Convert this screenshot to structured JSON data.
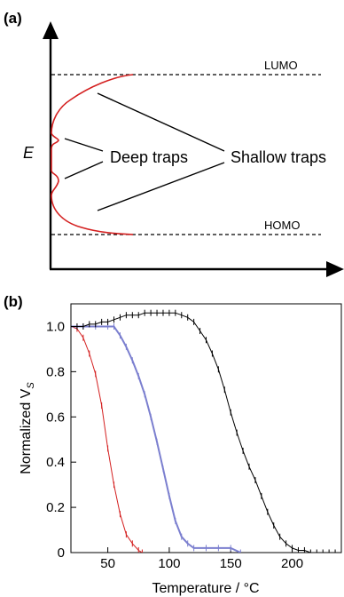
{
  "panel_a": {
    "label": "(a)",
    "y_axis_label": "E",
    "lumo_label": "LUMO",
    "homo_label": "HOMO",
    "deep_traps_label": "Deep traps",
    "shallow_traps_label": "Shallow traps",
    "curve_color": "#d42020"
  },
  "chart_data": {
    "type": "line",
    "panel_label": "(b)",
    "xlabel": "Temperature / °C",
    "ylabel": "Normalized V",
    "ylabel_subscript": "S",
    "xlim": [
      20,
      240
    ],
    "ylim": [
      0,
      1.1
    ],
    "x_ticks": [
      50,
      100,
      150,
      200
    ],
    "y_ticks": [
      0,
      0.2,
      0.4,
      0.6,
      0.8,
      1.0
    ],
    "y_tick_labels": [
      "0",
      "0.2",
      "0.4",
      "0.6",
      "0.8",
      "1.0"
    ],
    "series": [
      {
        "color": "#d42020",
        "x": [
          20,
          25,
          30,
          35,
          40,
          45,
          50,
          55,
          60,
          65,
          70,
          75,
          78
        ],
        "y": [
          1.0,
          0.99,
          0.95,
          0.88,
          0.79,
          0.65,
          0.46,
          0.3,
          0.17,
          0.08,
          0.04,
          0.01,
          0.0
        ]
      },
      {
        "color": "#7b7fcf",
        "x": [
          20,
          30,
          40,
          50,
          55,
          60,
          65,
          70,
          75,
          80,
          85,
          90,
          95,
          100,
          105,
          110,
          115,
          120,
          130,
          140,
          150,
          158
        ],
        "y": [
          1.0,
          1.0,
          1.0,
          1.0,
          1.0,
          0.96,
          0.91,
          0.85,
          0.78,
          0.7,
          0.6,
          0.49,
          0.37,
          0.25,
          0.14,
          0.07,
          0.04,
          0.02,
          0.02,
          0.02,
          0.02,
          0.0
        ]
      },
      {
        "color": "#000000",
        "x": [
          20,
          25,
          30,
          35,
          40,
          45,
          50,
          55,
          60,
          65,
          70,
          75,
          80,
          85,
          90,
          95,
          100,
          105,
          110,
          115,
          120,
          125,
          130,
          135,
          140,
          145,
          150,
          155,
          160,
          165,
          170,
          175,
          180,
          185,
          190,
          195,
          200,
          205,
          210,
          215,
          220,
          225,
          230,
          235,
          240
        ],
        "y": [
          1.0,
          1.0,
          1.0,
          1.01,
          1.01,
          1.02,
          1.02,
          1.03,
          1.04,
          1.05,
          1.05,
          1.05,
          1.06,
          1.06,
          1.06,
          1.06,
          1.06,
          1.06,
          1.05,
          1.04,
          1.02,
          0.98,
          0.94,
          0.88,
          0.81,
          0.72,
          0.62,
          0.53,
          0.45,
          0.38,
          0.32,
          0.25,
          0.18,
          0.12,
          0.07,
          0.04,
          0.02,
          0.01,
          0.01,
          0.0,
          0.0,
          0.0,
          0.0,
          0.0,
          0.0
        ]
      }
    ]
  }
}
